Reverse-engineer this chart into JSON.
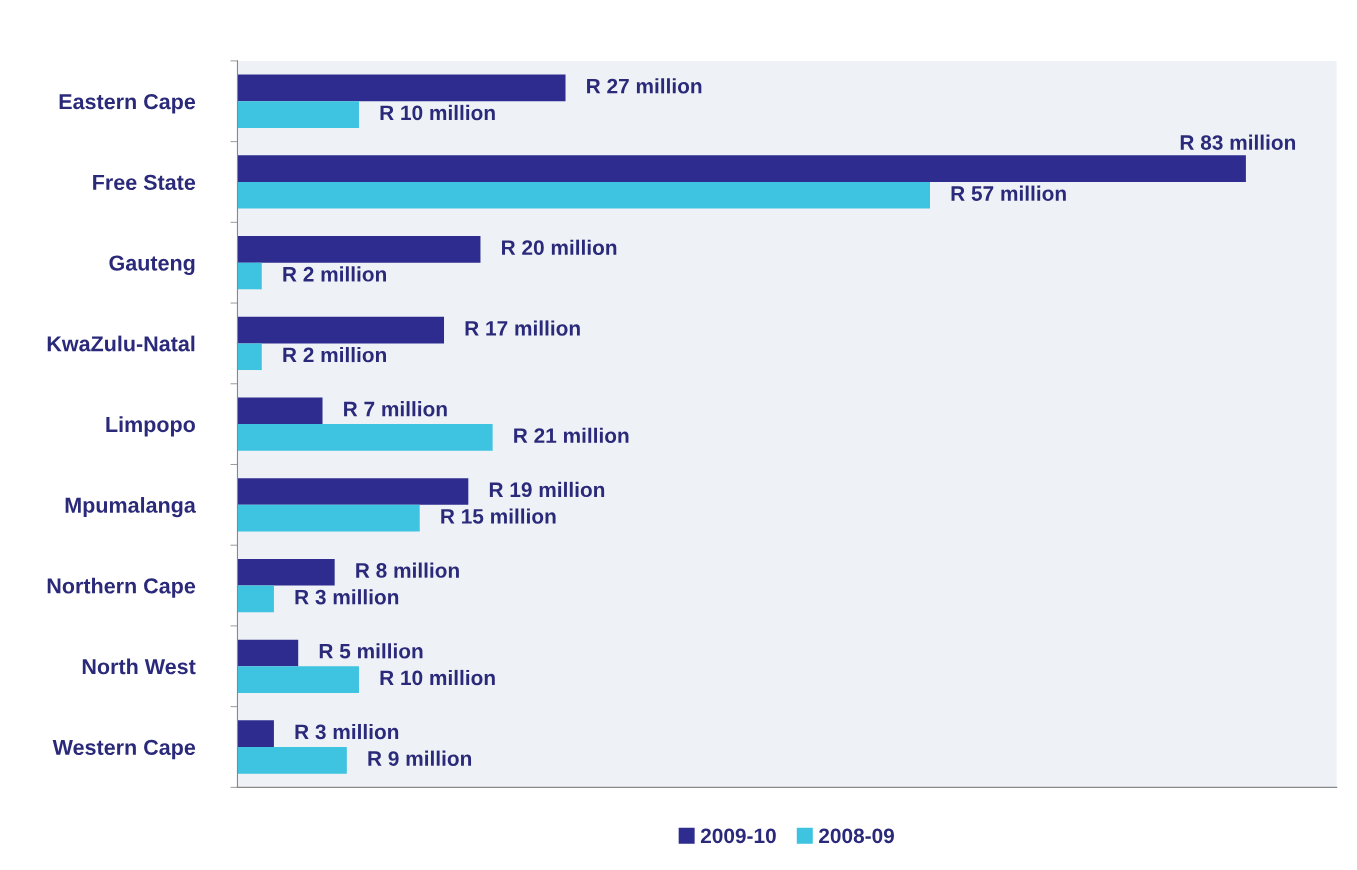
{
  "chart_data": {
    "type": "bar",
    "orientation": "horizontal",
    "categories": [
      "Eastern Cape",
      "Free State",
      "Gauteng",
      "KwaZulu-Natal",
      "Limpopo",
      "Mpumalanga",
      "Northern Cape",
      "North West",
      "Western Cape"
    ],
    "series": [
      {
        "name": "2009-10",
        "color": "#2e2d8f",
        "values": [
          27000000,
          83000000,
          20000000,
          17000000,
          7000000,
          19000000,
          8000000,
          5000000,
          3000000
        ],
        "value_labels": [
          "R 27 million",
          "R 83 million",
          "R 20 million",
          "R 17 million",
          "R 7 million",
          "R 19 million",
          "R 8 million",
          "R 5 million",
          "R 3 million"
        ]
      },
      {
        "name": "2008-09",
        "color": "#3ec3e0",
        "values": [
          10000000,
          57000000,
          2000000,
          2000000,
          21000000,
          15000000,
          3000000,
          10000000,
          9000000
        ],
        "value_labels": [
          "R 10 million",
          "R 57 million",
          "R 2 million",
          "R 2 million",
          "R 21 million",
          "R 15 million",
          "R 3 million",
          "R 10 million",
          "R 9 million"
        ]
      }
    ],
    "tick_labels": "y",
    "grid": false,
    "legend": "bottom"
  }
}
